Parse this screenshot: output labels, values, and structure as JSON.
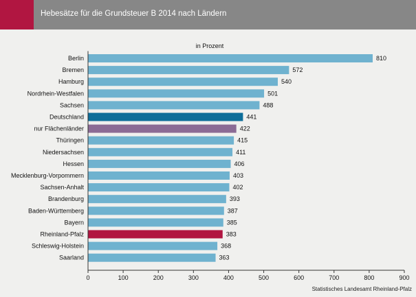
{
  "header": {
    "title": "Hebesätze für die Grundsteuer B 2014 nach Ländern"
  },
  "source": "Statistisches Landesamt Rheinland-Pfalz",
  "colors": {
    "header_background": "#878787",
    "header_accent": "#b11641",
    "page_background": "#f0f0ee",
    "bar_default": "#6fb2cf",
    "bar_deutschland": "#0e6e9a",
    "bar_flaechenlaender": "#8b6b95",
    "bar_rheinland_pfalz": "#b11641"
  },
  "chart_data": {
    "type": "bar",
    "orientation": "horizontal",
    "subtitle": "in Prozent",
    "categories": [
      "Berlin",
      "Bremen",
      "Hamburg",
      "Nordrhein-Westfalen",
      "Sachsen",
      "Deutschland",
      "nur Flächenländer",
      "Thüringen",
      "Niedersachsen",
      "Hessen",
      "Mecklenburg-Vorpommern",
      "Sachsen-Anhalt",
      "Brandenburg",
      "Baden-Württemberg",
      "Bayern",
      "Rheinland-Pfalz",
      "Schleswig-Holstein",
      "Saarland"
    ],
    "values": [
      810,
      572,
      540,
      501,
      488,
      441,
      422,
      415,
      411,
      406,
      403,
      402,
      393,
      387,
      385,
      383,
      368,
      363
    ],
    "highlight": {
      "Deutschland": "bar_deutschland",
      "nur Flächenländer": "bar_flaechenlaender",
      "Rheinland-Pfalz": "bar_rheinland_pfalz"
    },
    "xlim": [
      0,
      900
    ],
    "xticks": [
      0,
      100,
      200,
      300,
      400,
      500,
      600,
      700,
      800,
      900
    ],
    "grid": false,
    "legend": "none"
  }
}
